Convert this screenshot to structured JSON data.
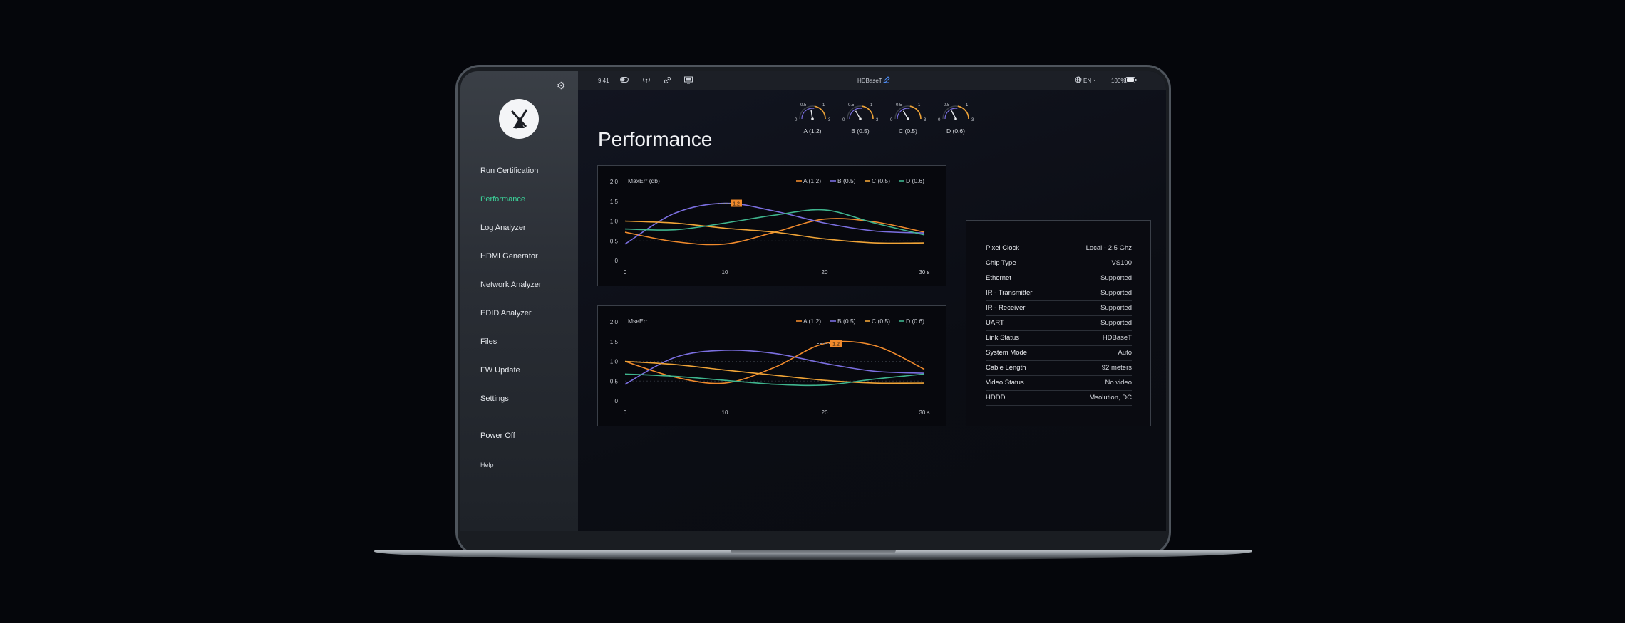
{
  "statusbar": {
    "time": "9:41",
    "title": "HDBaseT",
    "language": "EN",
    "battery": "100%"
  },
  "sidebar": {
    "items": [
      {
        "label": "Run Certification",
        "active": false
      },
      {
        "label": "Performance",
        "active": true
      },
      {
        "label": "Log Analyzer",
        "active": false
      },
      {
        "label": "HDMI Generator",
        "active": false
      },
      {
        "label": "Network Analyzer",
        "active": false
      },
      {
        "label": "EDID Analyzer",
        "active": false
      },
      {
        "label": "Files",
        "active": false
      },
      {
        "label": "FW Update",
        "active": false
      },
      {
        "label": "Settings",
        "active": false
      }
    ],
    "power_off": "Power Off",
    "help": "Help"
  },
  "page": {
    "title": "Performance"
  },
  "colors": {
    "A": "#f08a2c",
    "B": "#7b6fe0",
    "C": "#f0a437",
    "D": "#3fb58e",
    "accent": "#3bd49a"
  },
  "chart_data": [
    {
      "type": "line",
      "title": "MaxErr (db)",
      "xlim": [
        0,
        30
      ],
      "ylim": [
        0,
        2.0
      ],
      "x_ticks": [
        "0",
        "10",
        "20",
        "30 s"
      ],
      "y_ticks": [
        "0",
        "0.5",
        "1.0",
        "1.5",
        "2.0"
      ],
      "marker_label": "1.2",
      "series": [
        {
          "name": "A (1.2)",
          "color": "#f08a2c",
          "x": [
            0,
            5,
            10,
            15,
            20,
            25,
            30
          ],
          "y": [
            0.72,
            0.48,
            0.42,
            0.72,
            1.05,
            0.98,
            0.72
          ]
        },
        {
          "name": "B (0.5)",
          "color": "#7b6fe0",
          "x": [
            0,
            5,
            10,
            15,
            20,
            25,
            30
          ],
          "y": [
            0.42,
            1.2,
            1.45,
            1.25,
            0.95,
            0.75,
            0.7
          ]
        },
        {
          "name": "C (0.5)",
          "color": "#f0a437",
          "x": [
            0,
            5,
            10,
            15,
            20,
            25,
            30
          ],
          "y": [
            1.0,
            0.95,
            0.82,
            0.72,
            0.55,
            0.45,
            0.45
          ]
        },
        {
          "name": "D (0.6)",
          "color": "#3fb58e",
          "x": [
            0,
            5,
            10,
            15,
            20,
            25,
            30
          ],
          "y": [
            0.8,
            0.78,
            0.95,
            1.15,
            1.28,
            0.95,
            0.65
          ]
        }
      ]
    },
    {
      "type": "line",
      "title": "MseErr",
      "xlim": [
        0,
        30
      ],
      "ylim": [
        0,
        2.0
      ],
      "x_ticks": [
        "0",
        "10",
        "20",
        "30 s"
      ],
      "y_ticks": [
        "0",
        "0.5",
        "1.0",
        "1.5",
        "2.0"
      ],
      "marker_label": "1.2",
      "series": [
        {
          "name": "A (1.2)",
          "color": "#f08a2c",
          "x": [
            0,
            5,
            10,
            15,
            20,
            25,
            30
          ],
          "y": [
            1.0,
            0.6,
            0.45,
            0.85,
            1.45,
            1.4,
            0.8
          ]
        },
        {
          "name": "B (0.5)",
          "color": "#7b6fe0",
          "x": [
            0,
            5,
            10,
            15,
            20,
            25,
            30
          ],
          "y": [
            0.42,
            1.1,
            1.28,
            1.2,
            0.95,
            0.75,
            0.7
          ]
        },
        {
          "name": "C (0.5)",
          "color": "#f0a437",
          "x": [
            0,
            5,
            10,
            15,
            20,
            25,
            30
          ],
          "y": [
            1.0,
            0.92,
            0.78,
            0.65,
            0.52,
            0.45,
            0.45
          ]
        },
        {
          "name": "D (0.6)",
          "color": "#3fb58e",
          "x": [
            0,
            5,
            10,
            15,
            20,
            25,
            30
          ],
          "y": [
            0.68,
            0.62,
            0.52,
            0.42,
            0.4,
            0.55,
            0.68
          ]
        }
      ]
    }
  ],
  "gauges": [
    {
      "label": "A (1.2)",
      "value": 1.2,
      "ticks": [
        "0",
        "0.5",
        "1",
        "3"
      ]
    },
    {
      "label": "B (0.5)",
      "value": 0.5,
      "ticks": [
        "0",
        "0.5",
        "1",
        "3"
      ]
    },
    {
      "label": "C (0.5)",
      "value": 0.5,
      "ticks": [
        "0",
        "0.5",
        "1",
        "3"
      ]
    },
    {
      "label": "D (0.6)",
      "value": 0.6,
      "ticks": [
        "0",
        "0.5",
        "1",
        "3"
      ]
    }
  ],
  "info": [
    {
      "key": "Pixel Clock",
      "value": "Local - 2.5 Ghz"
    },
    {
      "key": "Chip Type",
      "value": "VS100"
    },
    {
      "key": "Ethernet",
      "value": "Supported"
    },
    {
      "key": "IR - Transmitter",
      "value": "Supported"
    },
    {
      "key": "IR - Receiver",
      "value": "Supported"
    },
    {
      "key": "UART",
      "value": "Supported"
    },
    {
      "key": "Link Status",
      "value": "HDBaseT"
    },
    {
      "key": "System Mode",
      "value": "Auto"
    },
    {
      "key": "Cable Length",
      "value": "92 meters"
    },
    {
      "key": "Video Status",
      "value": "No video"
    },
    {
      "key": "HDDD",
      "value": "Msolution, DC"
    }
  ]
}
